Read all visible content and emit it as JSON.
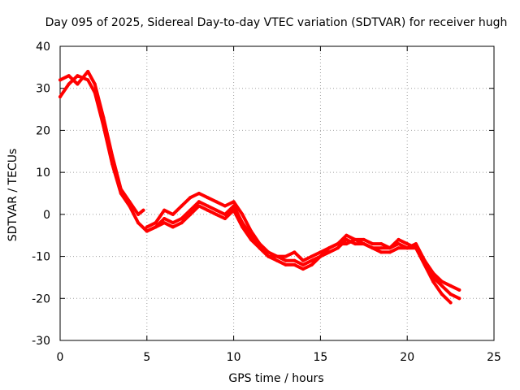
{
  "chart_data": {
    "type": "line",
    "title": "Day 095 of 2025, Sidereal Day-to-day VTEC variation (SDTVAR) for receiver hugh",
    "xlabel": "GPS time / hours",
    "ylabel": "SDTVAR / TECUs",
    "xlim": [
      0,
      25
    ],
    "ylim": [
      -30,
      40
    ],
    "xticks": [
      0,
      5,
      10,
      15,
      20,
      25
    ],
    "yticks": [
      -30,
      -20,
      -10,
      0,
      10,
      20,
      30,
      40
    ],
    "grid": true,
    "series_color": "#ff0000",
    "series": [
      {
        "name": "trace-1",
        "x": [
          0,
          0.5,
          1.0,
          1.6,
          2.0,
          2.5,
          3.0,
          3.5,
          4.0,
          4.5,
          4.8
        ],
        "y": [
          32,
          33,
          31,
          34,
          31,
          23,
          14,
          6,
          3,
          0,
          1
        ]
      },
      {
        "name": "trace-2",
        "x": [
          0,
          0.5,
          1.0,
          1.6,
          2.0,
          2.5,
          3.0,
          3.5,
          4.0,
          4.5,
          5.0,
          5.5,
          6.0,
          6.5,
          7.0,
          7.5,
          8.0,
          8.5,
          9.0,
          9.5,
          10.0,
          10.5,
          11.0,
          11.5,
          12.0,
          12.5,
          13.0,
          13.5,
          14.0,
          14.5,
          15.0,
          15.5,
          16.0,
          16.5,
          17.0,
          17.5,
          18.0,
          18.5,
          19.0,
          19.5,
          20.0,
          20.5,
          21.0,
          21.5,
          22.0,
          22.5
        ],
        "y": [
          28,
          31,
          33,
          32,
          29,
          21,
          12,
          5,
          2,
          -2,
          -4,
          -3,
          -2,
          -3,
          -2,
          0,
          2,
          1,
          0,
          -1,
          1,
          -3,
          -6,
          -8,
          -10,
          -11,
          -12,
          -12,
          -13,
          -12,
          -10,
          -9,
          -8,
          -6,
          -7,
          -7,
          -8,
          -9,
          -9,
          -8,
          -8,
          -8,
          -12,
          -16,
          -19,
          -21
        ]
      },
      {
        "name": "trace-3",
        "x": [
          5.0,
          5.5,
          6.0,
          6.5,
          7.0,
          7.5,
          8.0,
          8.5,
          9.0,
          9.5,
          10.0,
          10.5,
          11.0,
          11.5,
          12.0,
          12.5,
          13.0,
          13.5,
          14.0,
          14.5,
          15.0,
          15.5,
          16.0,
          16.5,
          17.0,
          17.5,
          18.0,
          18.5,
          19.0,
          19.5,
          20.0,
          20.5,
          21.0,
          21.5,
          22.0,
          22.5,
          23.0
        ],
        "y": [
          -3,
          -2,
          1,
          0,
          2,
          4,
          5,
          4,
          3,
          2,
          3,
          0,
          -4,
          -7,
          -9,
          -10,
          -10,
          -9,
          -11,
          -10,
          -9,
          -8,
          -7,
          -5,
          -6,
          -6,
          -7,
          -7,
          -8,
          -7,
          -8,
          -7,
          -11,
          -14,
          -16,
          -17,
          -18
        ]
      },
      {
        "name": "trace-4",
        "x": [
          5.0,
          5.5,
          6.0,
          6.5,
          7.0,
          7.5,
          8.0,
          8.5,
          9.0,
          9.5,
          10.0,
          10.5,
          11.0,
          11.5,
          12.0,
          12.5,
          13.0,
          13.5,
          14.0,
          14.5,
          15.0,
          15.5,
          16.0,
          16.5,
          17.0,
          17.5,
          18.0,
          18.5,
          19.0,
          19.5,
          20.0,
          20.5,
          21.0,
          21.5,
          22.0,
          22.5,
          23.0
        ],
        "y": [
          -4,
          -3,
          -1,
          -2,
          -1,
          1,
          3,
          2,
          1,
          0,
          2,
          -2,
          -5,
          -8,
          -10,
          -10,
          -11,
          -11,
          -12,
          -11,
          -10,
          -8,
          -7,
          -7,
          -6,
          -7,
          -8,
          -8,
          -8,
          -6,
          -7,
          -8,
          -11,
          -15,
          -17,
          -19,
          -20
        ]
      }
    ]
  }
}
